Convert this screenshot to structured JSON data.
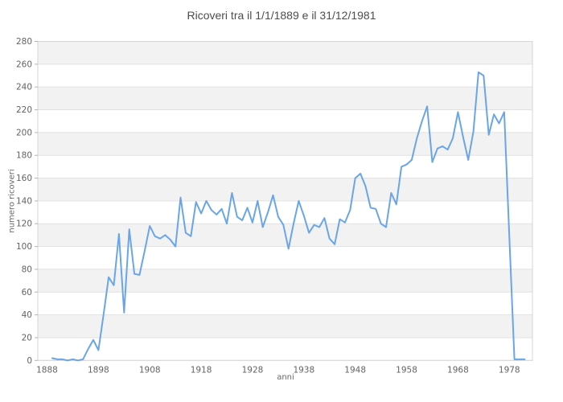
{
  "title": "Ricoveri tra il 1/1/1889 e il 31/12/1981",
  "chart_data": {
    "type": "line",
    "title": "Ricoveri tra il 1/1/1889 e il 31/12/1981",
    "xlabel": "anni",
    "ylabel": "numero ricoveri",
    "legend": false,
    "grid": true,
    "xlim": [
      1886.2,
      1982.5
    ],
    "ylim": [
      0,
      280
    ],
    "xticks": [
      1888,
      1898,
      1908,
      1918,
      1928,
      1938,
      1948,
      1958,
      1968,
      1978
    ],
    "yticks": [
      0,
      20,
      40,
      60,
      80,
      100,
      120,
      140,
      160,
      180,
      200,
      220,
      240,
      260,
      280
    ],
    "x": [
      1889,
      1890,
      1891,
      1892,
      1893,
      1894,
      1895,
      1896,
      1897,
      1898,
      1899,
      1900,
      1901,
      1902,
      1903,
      1904,
      1905,
      1906,
      1907,
      1908,
      1909,
      1910,
      1911,
      1912,
      1913,
      1914,
      1915,
      1916,
      1917,
      1918,
      1919,
      1920,
      1921,
      1922,
      1923,
      1924,
      1925,
      1926,
      1927,
      1928,
      1929,
      1930,
      1931,
      1932,
      1933,
      1934,
      1935,
      1936,
      1937,
      1938,
      1939,
      1940,
      1941,
      1942,
      1943,
      1944,
      1945,
      1946,
      1947,
      1948,
      1949,
      1950,
      1951,
      1952,
      1953,
      1954,
      1955,
      1956,
      1957,
      1958,
      1959,
      1960,
      1961,
      1962,
      1963,
      1964,
      1965,
      1966,
      1967,
      1968,
      1969,
      1970,
      1971,
      1972,
      1973,
      1974,
      1975,
      1976,
      1977,
      1978,
      1979,
      1980,
      1981
    ],
    "values": [
      2,
      1,
      1,
      0,
      1,
      0,
      1,
      10,
      18,
      9,
      40,
      73,
      66,
      111,
      42,
      115,
      76,
      75,
      96,
      118,
      109,
      107,
      110,
      106,
      100,
      143,
      112,
      109,
      139,
      129,
      140,
      132,
      128,
      133,
      120,
      147,
      126,
      123,
      134,
      121,
      140,
      117,
      130,
      145,
      126,
      119,
      98,
      120,
      140,
      127,
      112,
      119,
      117,
      125,
      107,
      102,
      124,
      121,
      132,
      160,
      164,
      153,
      134,
      133,
      120,
      117,
      147,
      137,
      170,
      172,
      176,
      195,
      210,
      223,
      174,
      186,
      188,
      185,
      195,
      218,
      196,
      176,
      201,
      253,
      250,
      198,
      216,
      208,
      218,
      108,
      1,
      1,
      1
    ],
    "style": {
      "line_color": "#6aa5e8",
      "band_color": "#f2f2f2",
      "grid_color": "#e1e1e1",
      "border_color": "#d6d6d6",
      "tick_color": "#b3b3b3",
      "tick_text_color": "#636363",
      "title_color": "#4d4d4d",
      "background": "#ffffff"
    }
  }
}
